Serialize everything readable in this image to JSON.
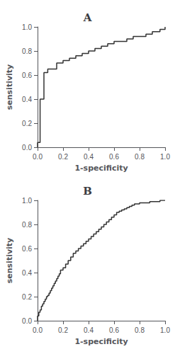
{
  "chart_data": [
    {
      "type": "step",
      "title": "A",
      "xlabel": "1-specificity",
      "ylabel": "sensitivity",
      "color": "#333333",
      "grid": false,
      "xlim": [
        0.0,
        1.0
      ],
      "ylim": [
        0.0,
        1.0
      ],
      "xticks": [
        {
          "value": 0.0,
          "label": "0.0"
        },
        0.2,
        0.4,
        0.6,
        0.8,
        {
          "value": 1.0,
          "label": "1.0"
        }
      ],
      "yticks": [
        {
          "value": 0.0,
          "label": "0.0"
        },
        0.2,
        0.4,
        0.6,
        0.8,
        {
          "value": 1.0,
          "label": "1.0"
        }
      ],
      "x": [
        0.0,
        0.0,
        0.02,
        0.02,
        0.05,
        0.05,
        0.08,
        0.08,
        0.15,
        0.15,
        0.2,
        0.25,
        0.3,
        0.35,
        0.4,
        0.45,
        0.5,
        0.55,
        0.6,
        0.65,
        0.7,
        0.75,
        0.8,
        0.85,
        0.88,
        0.9,
        0.92,
        0.94,
        0.96,
        1.0
      ],
      "values": [
        0.0,
        0.04,
        0.04,
        0.4,
        0.4,
        0.62,
        0.62,
        0.65,
        0.65,
        0.7,
        0.72,
        0.74,
        0.76,
        0.78,
        0.8,
        0.82,
        0.84,
        0.86,
        0.88,
        0.88,
        0.9,
        0.92,
        0.92,
        0.94,
        0.94,
        0.96,
        0.96,
        0.96,
        0.98,
        1.0
      ]
    },
    {
      "type": "step",
      "title": "B",
      "xlabel": "1-specificity",
      "ylabel": "sensitivity",
      "color": "#333333",
      "grid": false,
      "xlim": [
        0.0,
        1.0
      ],
      "ylim": [
        0.0,
        1.0
      ],
      "xticks": [
        {
          "value": 0.0,
          "label": "0.0"
        },
        0.2,
        0.4,
        0.6,
        0.8,
        {
          "value": 1.0,
          "label": "1.0"
        }
      ],
      "yticks": [
        {
          "value": 0.0,
          "label": "0.0"
        },
        0.2,
        0.4,
        0.6,
        0.8,
        {
          "value": 1.0,
          "label": "1.0"
        }
      ],
      "x": [
        0.0,
        0.0,
        0.01,
        0.01,
        0.02,
        0.02,
        0.03,
        0.03,
        0.04,
        0.04,
        0.05,
        0.05,
        0.06,
        0.06,
        0.07,
        0.07,
        0.08,
        0.08,
        0.09,
        0.09,
        0.1,
        0.1,
        0.11,
        0.11,
        0.12,
        0.12,
        0.13,
        0.13,
        0.14,
        0.14,
        0.15,
        0.15,
        0.16,
        0.16,
        0.17,
        0.17,
        0.18,
        0.18,
        0.2,
        0.2,
        0.22,
        0.22,
        0.24,
        0.24,
        0.26,
        0.26,
        0.28,
        0.28,
        0.3,
        0.3,
        0.32,
        0.32,
        0.34,
        0.34,
        0.36,
        0.36,
        0.38,
        0.38,
        0.4,
        0.4,
        0.42,
        0.42,
        0.44,
        0.44,
        0.46,
        0.46,
        0.48,
        0.48,
        0.5,
        0.5,
        0.52,
        0.52,
        0.54,
        0.54,
        0.56,
        0.56,
        0.58,
        0.58,
        0.6,
        0.6,
        0.62,
        0.62,
        0.64,
        0.64,
        0.66,
        0.66,
        0.68,
        0.68,
        0.7,
        0.7,
        0.72,
        0.72,
        0.74,
        0.74,
        0.76,
        0.76,
        0.8,
        0.8,
        0.84,
        0.84,
        0.88,
        0.88,
        0.92,
        0.92,
        0.96,
        0.96,
        1.0
      ],
      "values": [
        0.0,
        0.04,
        0.04,
        0.07,
        0.07,
        0.09,
        0.09,
        0.12,
        0.12,
        0.14,
        0.14,
        0.16,
        0.16,
        0.18,
        0.18,
        0.2,
        0.2,
        0.21,
        0.21,
        0.23,
        0.23,
        0.25,
        0.25,
        0.27,
        0.27,
        0.29,
        0.29,
        0.31,
        0.31,
        0.33,
        0.33,
        0.35,
        0.35,
        0.37,
        0.37,
        0.39,
        0.39,
        0.42,
        0.42,
        0.44,
        0.44,
        0.47,
        0.47,
        0.5,
        0.5,
        0.53,
        0.53,
        0.56,
        0.56,
        0.58,
        0.58,
        0.6,
        0.6,
        0.62,
        0.62,
        0.64,
        0.64,
        0.66,
        0.66,
        0.68,
        0.68,
        0.7,
        0.7,
        0.72,
        0.72,
        0.74,
        0.74,
        0.76,
        0.76,
        0.78,
        0.78,
        0.8,
        0.8,
        0.82,
        0.82,
        0.84,
        0.84,
        0.86,
        0.86,
        0.88,
        0.88,
        0.9,
        0.9,
        0.91,
        0.91,
        0.92,
        0.92,
        0.93,
        0.93,
        0.94,
        0.94,
        0.95,
        0.95,
        0.96,
        0.96,
        0.97,
        0.97,
        0.98,
        0.98,
        0.98,
        0.98,
        0.99,
        0.99,
        0.99,
        0.99,
        1.0,
        1.0
      ]
    }
  ]
}
